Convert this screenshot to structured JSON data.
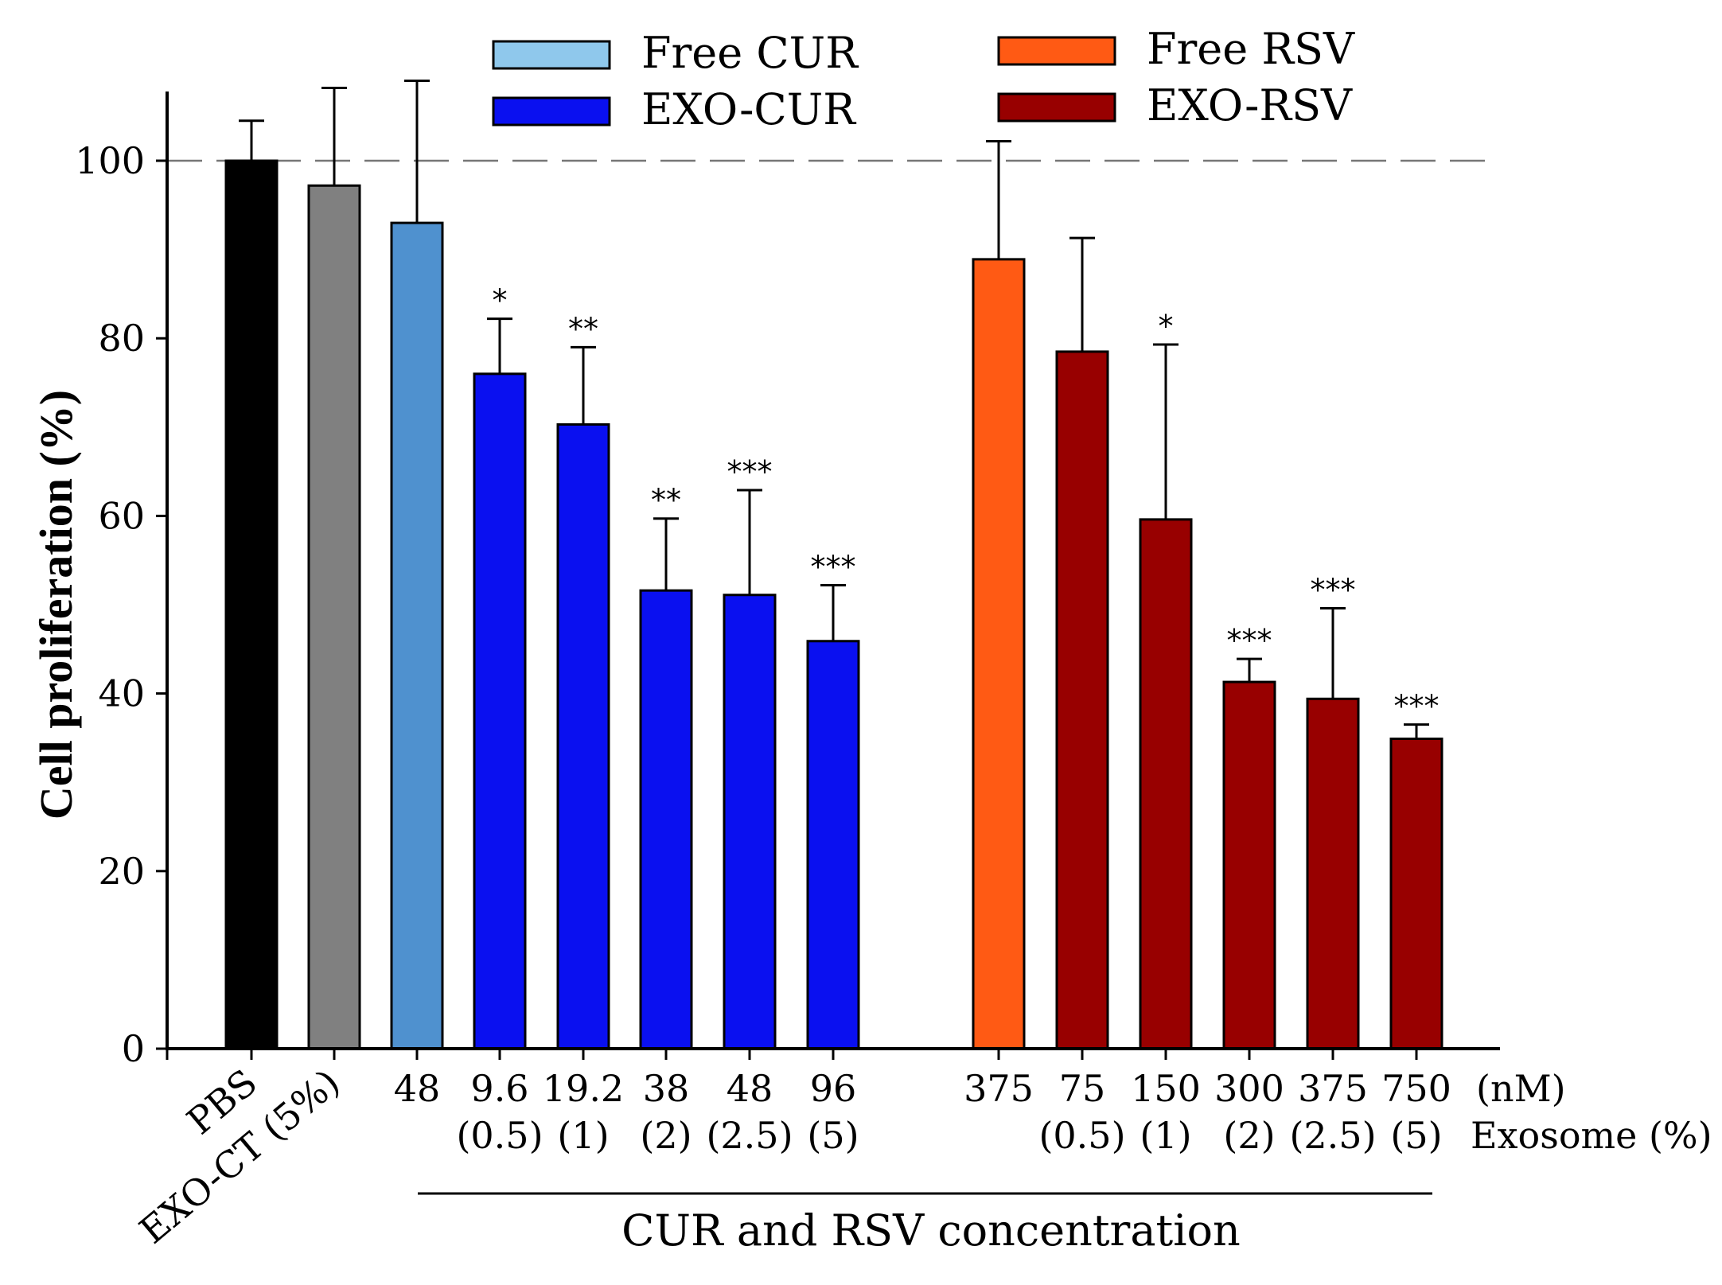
{
  "chart_data": {
    "type": "bar",
    "ylabel": "Cell proliferation (%)",
    "xlabel": "CUR and RSV concentration",
    "ylim": [
      0,
      110
    ],
    "yticks": [
      "0",
      "20",
      "40",
      "60",
      "80",
      "100"
    ],
    "reference_line": {
      "y": 100,
      "style": "dashed"
    },
    "legend_placement": "top",
    "unit_labels": [
      "(nM)",
      "Exosome (%)"
    ],
    "legend": [
      {
        "name": "Free CUR",
        "color": "#8fc8ec"
      },
      {
        "name": "EXO-CUR",
        "color": "#0a10f0"
      },
      {
        "name": "Free RSV",
        "color": "#ff5a14"
      },
      {
        "name": "EXO-RSV",
        "color": "#980000"
      }
    ],
    "categories": [
      {
        "line1": "PBS",
        "line2": "",
        "value": 100,
        "error": 4.5,
        "color": "#000000",
        "sig": ""
      },
      {
        "line1": "EXO-CT (5%)",
        "line2": "",
        "value": 97.2,
        "error": 11,
        "color": "#808080",
        "sig": ""
      },
      {
        "line1": "48",
        "line2": "",
        "value": 93,
        "error": 16,
        "color": "#4f91cf",
        "sig": ""
      },
      {
        "line1": "9.6",
        "line2": "(0.5)",
        "value": 76,
        "error": 6.2,
        "color": "#0a10f0",
        "sig": "*"
      },
      {
        "line1": "19.2",
        "line2": "(1)",
        "value": 70.3,
        "error": 8.7,
        "color": "#0a10f0",
        "sig": "**"
      },
      {
        "line1": "38",
        "line2": "(2)",
        "value": 51.6,
        "error": 8.1,
        "color": "#0a10f0",
        "sig": "**"
      },
      {
        "line1": "48",
        "line2": "(2.5)",
        "value": 51.1,
        "error": 11.8,
        "color": "#0a10f0",
        "sig": "***"
      },
      {
        "line1": "96",
        "line2": "(5)",
        "value": 45.9,
        "error": 6.3,
        "color": "#0a10f0",
        "sig": "***"
      },
      {
        "line1": "375",
        "line2": "",
        "value": 88.9,
        "error": 13.3,
        "color": "#ff5a14",
        "sig": ""
      },
      {
        "line1": "75",
        "line2": "(0.5)",
        "value": 78.5,
        "error": 12.8,
        "color": "#980000",
        "sig": ""
      },
      {
        "line1": "150",
        "line2": "(1)",
        "value": 59.6,
        "error": 19.7,
        "color": "#980000",
        "sig": "*"
      },
      {
        "line1": "300",
        "line2": "(2)",
        "value": 41.3,
        "error": 2.6,
        "color": "#980000",
        "sig": "***"
      },
      {
        "line1": "375",
        "line2": "(2.5)",
        "value": 39.4,
        "error": 10.2,
        "color": "#980000",
        "sig": "***"
      },
      {
        "line1": "750",
        "line2": "(5)",
        "value": 34.9,
        "error": 1.6,
        "color": "#980000",
        "sig": "***"
      }
    ]
  }
}
